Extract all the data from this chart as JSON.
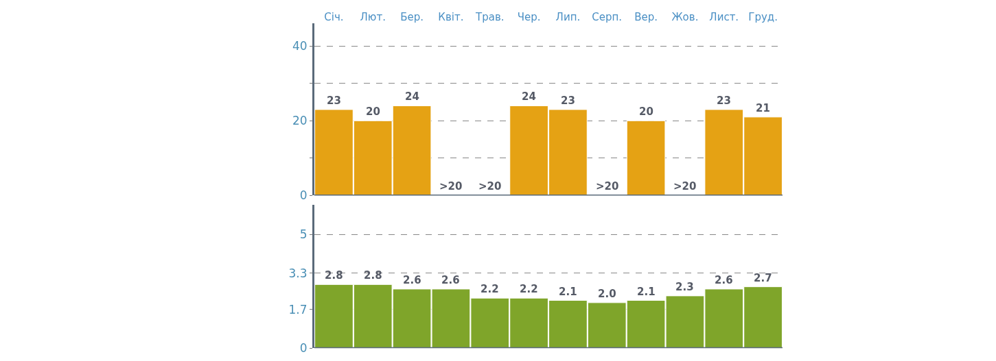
{
  "chart_data": [
    {
      "type": "bar",
      "categories": [
        "Січ.",
        "Лют.",
        "Бер.",
        "Квіт.",
        "Трав.",
        "Чер.",
        "Лип.",
        "Серп.",
        "Вер.",
        "Жов.",
        "Лист.",
        "Груд."
      ],
      "values": [
        23,
        20,
        24,
        null,
        null,
        24,
        23,
        null,
        20,
        null,
        23,
        21
      ],
      "value_labels": [
        "23",
        "20",
        "24",
        ">20",
        ">20",
        "24",
        "23",
        ">20",
        "20",
        ">20",
        "23",
        "21"
      ],
      "color": "#e5a214",
      "ylim": [
        0,
        46
      ],
      "yticks": [
        0,
        {
          "value": 10,
          "label": null
        },
        20,
        {
          "value": 30,
          "label": null
        },
        40
      ],
      "grid": "y"
    },
    {
      "type": "bar",
      "categories": [
        null,
        null,
        null,
        null,
        null,
        null,
        null,
        null,
        null,
        null,
        null,
        null
      ],
      "values": [
        2.8,
        2.8,
        2.6,
        2.6,
        2.2,
        2.2,
        2.1,
        2.0,
        2.1,
        2.3,
        2.6,
        2.7
      ],
      "value_labels": [
        "2.8",
        "2.8",
        "2.6",
        "2.6",
        "2.2",
        "2.2",
        "2.1",
        "2.0",
        "2.1",
        "2.3",
        "2.6",
        "2.7"
      ],
      "color": "#7fa52a",
      "ylim": [
        0,
        6.3
      ],
      "yticks": [
        0,
        1.7,
        3.3,
        5
      ],
      "grid": "y",
      "tick_labels": "y"
    }
  ]
}
